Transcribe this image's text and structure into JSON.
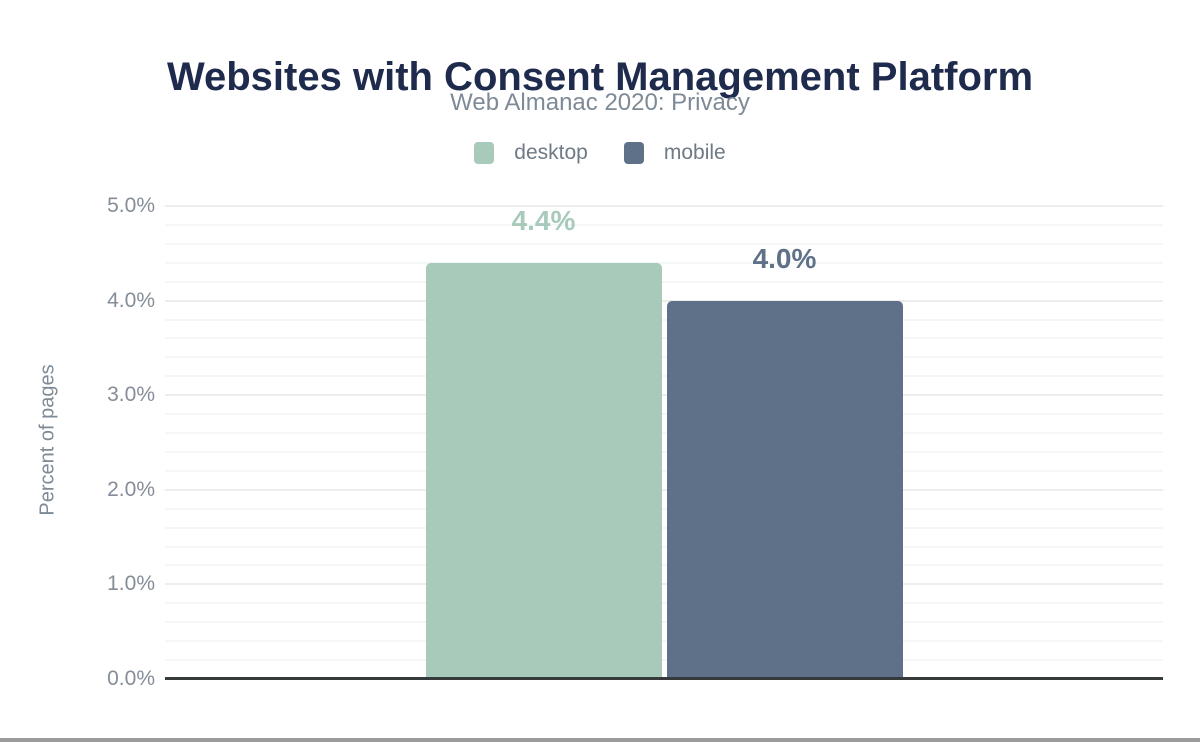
{
  "chart_data": {
    "type": "bar",
    "title": "Websites with Consent Management Platform",
    "subtitle": "Web Almanac 2020: Privacy",
    "ylabel": "Percent of pages",
    "series": [
      {
        "name": "desktop",
        "value": 4.4,
        "label": "4.4%",
        "color": "#a7cabb"
      },
      {
        "name": "mobile",
        "value": 4.0,
        "label": "4.0%",
        "color": "#5f7089"
      }
    ],
    "ylim": [
      0,
      5
    ],
    "y_major_step": 1,
    "y_minor_step": 0.2,
    "y_tick_labels": [
      "0.0%",
      "1.0%",
      "2.0%",
      "3.0%",
      "4.0%",
      "5.0%"
    ],
    "grid": "horizontal",
    "legend_position": "top-center"
  },
  "palette": {
    "title": "#1e2b4d",
    "subtitle": "#7e8a96",
    "legend_text": "#6e7a85",
    "tick_text": "#848d98",
    "axis_line": "#373a3a",
    "grid_major": "#ededed",
    "grid_minor": "#f5f6f6",
    "bottom_border": "#9b9b9b",
    "background": "#ffffff"
  }
}
